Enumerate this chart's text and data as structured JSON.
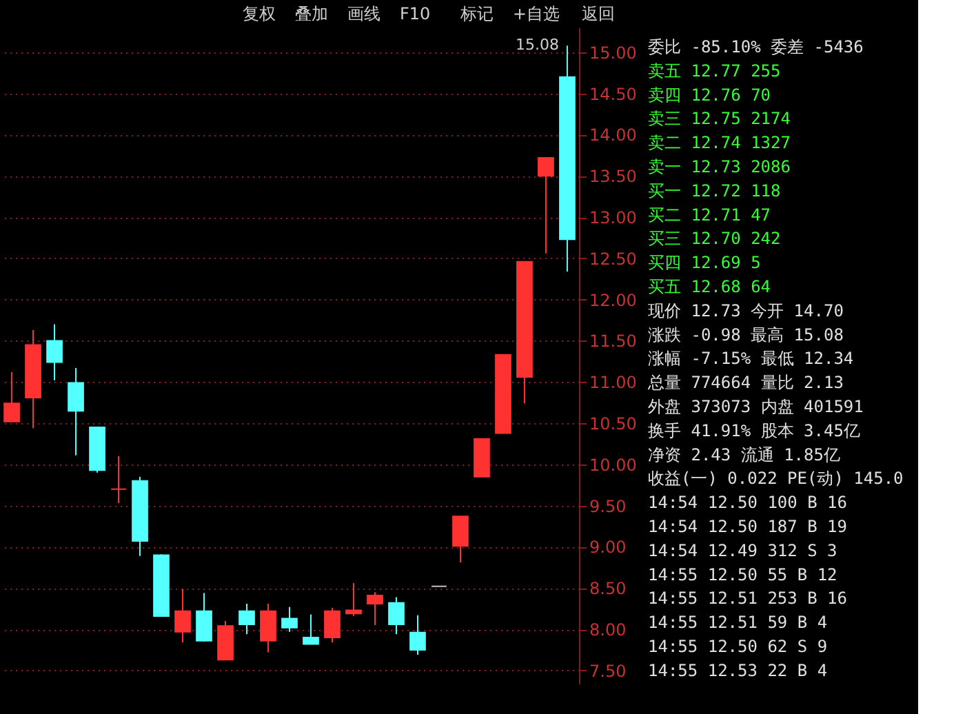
{
  "chart_data": [
    {
      "type": "candlestick",
      "categories": [
        null,
        null,
        null,
        null,
        null,
        null,
        null,
        null,
        null,
        null,
        null,
        null,
        null,
        null,
        null,
        null,
        null,
        null,
        null,
        null,
        null,
        null,
        null,
        null,
        null,
        null,
        null
      ],
      "ohlc": [
        [
          10.52,
          11.12,
          10.52,
          10.74
        ],
        [
          10.81,
          11.63,
          10.44,
          11.45
        ],
        [
          11.5,
          11.7,
          11.02,
          11.24
        ],
        [
          10.99,
          11.17,
          10.11,
          10.65
        ],
        [
          10.45,
          10.45,
          9.9,
          9.93
        ],
        [
          9.7,
          10.1,
          9.53,
          9.7
        ],
        [
          9.8,
          9.85,
          8.89,
          9.07
        ],
        [
          8.9,
          8.91,
          8.16,
          8.16
        ],
        [
          7.97,
          8.49,
          7.84,
          8.22
        ],
        [
          8.22,
          8.44,
          7.85,
          7.86
        ],
        [
          7.63,
          8.1,
          7.63,
          8.04
        ],
        [
          8.22,
          8.31,
          7.94,
          8.06
        ],
        [
          7.86,
          8.31,
          7.72,
          8.22
        ],
        [
          8.13,
          8.27,
          7.97,
          8.02
        ],
        [
          7.9,
          8.18,
          7.82,
          7.82
        ],
        [
          7.9,
          8.26,
          7.84,
          8.22
        ],
        [
          8.19,
          8.56,
          8.16,
          8.23
        ],
        [
          8.31,
          8.45,
          8.05,
          8.41
        ],
        [
          8.32,
          8.39,
          7.94,
          8.06
        ],
        [
          7.96,
          8.17,
          7.69,
          7.75
        ],
        [
          8.52,
          8.52,
          8.52,
          8.52
        ],
        [
          9.01,
          9.37,
          8.81,
          9.37
        ],
        [
          9.85,
          10.31,
          9.85,
          10.31
        ],
        [
          10.38,
          11.33,
          10.38,
          11.33
        ],
        [
          11.06,
          12.46,
          10.74,
          12.46
        ],
        [
          13.5,
          13.72,
          12.56,
          13.72
        ],
        [
          14.7,
          15.08,
          12.34,
          12.73
        ]
      ],
      "colors": [
        "#ff3232",
        "#ff3232",
        "#54ffff",
        "#54ffff",
        "#54ffff",
        "#ff3232",
        "#54ffff",
        "#54ffff",
        "#ff3232",
        "#54ffff",
        "#ff3232",
        "#54ffff",
        "#ff3232",
        "#54ffff",
        "#54ffff",
        "#ff3232",
        "#ff3232",
        "#ff3232",
        "#54ffff",
        "#54ffff",
        "#c0c0c0",
        "#ff3232",
        "#ff3232",
        "#ff3232",
        "#ff3232",
        "#ff3232",
        "#54ffff"
      ],
      "ylim": [
        7.34,
        15.3
      ],
      "yticks": [
        {
          "value": 7.5,
          "label": "7.50"
        },
        {
          "value": 8,
          "label": "8.00"
        },
        {
          "value": 8.5,
          "label": "8.50"
        },
        {
          "value": 9,
          "label": "9.00"
        },
        {
          "value": 9.5,
          "label": "9.50"
        },
        {
          "value": 10,
          "label": "10.00"
        },
        {
          "value": 10.5,
          "label": "10.50"
        },
        {
          "value": 11,
          "label": "11.00"
        },
        {
          "value": 11.5,
          "label": "11.50"
        },
        {
          "value": 12,
          "label": "12.00"
        },
        {
          "value": 12.5,
          "label": "12.50"
        },
        {
          "value": 13,
          "label": "13.00"
        },
        {
          "value": 13.5,
          "label": "13.50"
        },
        {
          "value": 14,
          "label": "14.00"
        },
        {
          "value": 14.5,
          "label": "14.50"
        },
        {
          "value": 15,
          "label": "15.00"
        }
      ],
      "grid": "y",
      "line_style": "dotted",
      "tick_labels": "y",
      "annotations": [
        "复权",
        "叠加",
        "画线",
        "F10",
        "标记",
        "+自选",
        "返回",
        "15.08"
      ]
    },
    {
      "type": "other",
      "annotations": [
        "委比 -85.10% 委差 -5436",
        "卖五 12.77 255",
        "卖四 12.76 70",
        "卖三 12.75 2174",
        "卖二 12.74 1327",
        "卖一 12.73 2086",
        "买一 12.72 118",
        "买二 12.71 47",
        "买三 12.70 242",
        "买四 12.69 5",
        "买五 12.68 64",
        "现价 12.73 今开 14.70",
        "涨跌 -0.98 最高 15.08",
        "涨幅 -7.15% 最低 12.34",
        "总量 774664 量比 2.13",
        "外盘 373073 内盘 401591",
        "换手 41.91% 股本 3.45亿",
        "净资 2.43 流通 1.85亿",
        "收益(一) 0.022 PE(动) 145.0",
        "14:54 12.50 100 B 16",
        "14:54 12.50 187 B 19",
        "14:54 12.49 312 S 3",
        "14:55 12.50 55 B 12",
        "14:55 12.51 253 B 16",
        "14:55 12.51 59 B 4",
        "14:55 12.50 62 S 9",
        "14:55 12.53 22 B 4"
      ]
    }
  ]
}
